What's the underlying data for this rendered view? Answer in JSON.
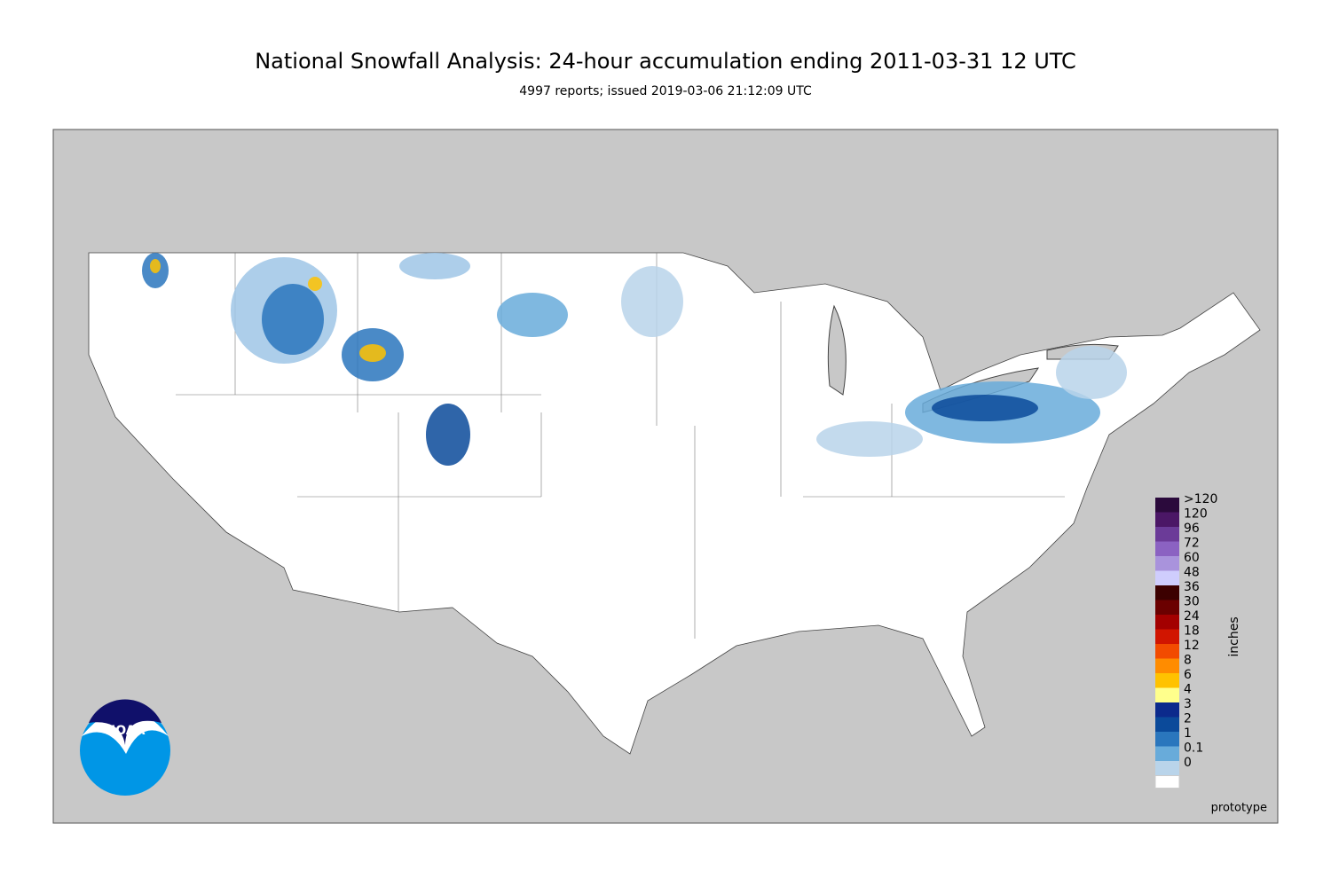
{
  "header": {
    "title": "National Snowfall Analysis: 24-hour accumulation ending 2011-03-31 12 UTC",
    "subtitle": "4997 reports; issued 2019-03-06 21:12:09 UTC"
  },
  "legend": {
    "unit": "inches",
    "classes": [
      {
        "label": ">120",
        "color": "#2b0a3c"
      },
      {
        "label": "120",
        "color": "#4b1766"
      },
      {
        "label": "96",
        "color": "#6b3b98"
      },
      {
        "label": "72",
        "color": "#8b62c2"
      },
      {
        "label": "60",
        "color": "#a993dc"
      },
      {
        "label": "48",
        "color": "#cfcdfd"
      },
      {
        "label": "36",
        "color": "#3c0000"
      },
      {
        "label": "30",
        "color": "#6b0000"
      },
      {
        "label": "24",
        "color": "#a30000"
      },
      {
        "label": "18",
        "color": "#d11500"
      },
      {
        "label": "12",
        "color": "#f24b00"
      },
      {
        "label": "8",
        "color": "#ff8c00"
      },
      {
        "label": "6",
        "color": "#ffc200"
      },
      {
        "label": "4",
        "color": "#ffff8c"
      },
      {
        "label": "3",
        "color": "#0c2a8c"
      },
      {
        "label": "2",
        "color": "#0b4a9a"
      },
      {
        "label": "1",
        "color": "#2a76bd"
      },
      {
        "label": "0.1",
        "color": "#68abda"
      },
      {
        "label": "0",
        "color": "#b9d4ea"
      }
    ],
    "base_color": "#ffffff"
  },
  "logo": "NOAA",
  "note": "prototype"
}
